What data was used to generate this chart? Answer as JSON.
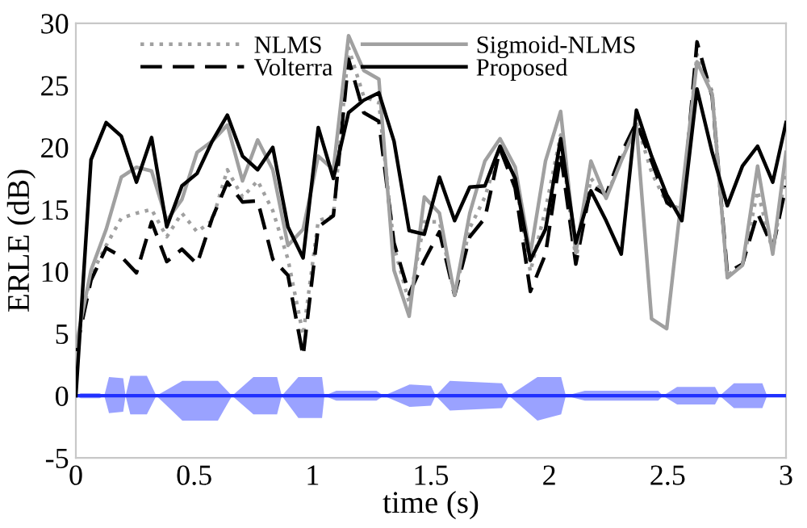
{
  "chart_data": {
    "type": "line",
    "xlabel": "time (s)",
    "ylabel": "ERLE (dB)",
    "x": [
      0,
      0.064,
      0.128,
      0.192,
      0.256,
      0.32,
      0.384,
      0.448,
      0.512,
      0.576,
      0.64,
      0.704,
      0.768,
      0.832,
      0.896,
      0.96,
      1.024,
      1.088,
      1.152,
      1.216,
      1.28,
      1.344,
      1.408,
      1.472,
      1.536,
      1.6,
      1.664,
      1.728,
      1.792,
      1.856,
      1.92,
      1.984,
      2.048,
      2.112,
      2.176,
      2.24,
      2.304,
      2.368,
      2.432,
      2.496,
      2.56,
      2.624,
      2.688,
      2.752,
      2.816,
      2.88,
      2.944,
      3
    ],
    "series": [
      {
        "name": "NLMS",
        "color": "#a0a0a0",
        "line_style": "dotted",
        "values": [
          4.0,
          9.7,
          12.1,
          14.3,
          14.7,
          15.0,
          12.8,
          14.7,
          13.2,
          14.1,
          18.2,
          16.0,
          17.3,
          14.9,
          11.0,
          4.9,
          14.1,
          14.5,
          28.0,
          24.1,
          23.6,
          12.0,
          7.5,
          14.0,
          14.0,
          8.1,
          13.5,
          16.0,
          20.0,
          17.5,
          10.0,
          15.0,
          21.0,
          11.0,
          17.5,
          16.0,
          19.0,
          22.0,
          18.0,
          15.5,
          15.0,
          27.5,
          24.5,
          9.7,
          10.5,
          16.5,
          11.6,
          18.0
        ]
      },
      {
        "name": "Volterra",
        "color": "#000000",
        "line_style": "dashed",
        "values": [
          3.6,
          9.3,
          11.9,
          11.2,
          9.9,
          14.0,
          10.8,
          11.8,
          10.6,
          14.3,
          17.2,
          15.6,
          15.7,
          11.0,
          9.7,
          3.2,
          13.6,
          14.5,
          27.1,
          22.8,
          22.1,
          12.3,
          8.2,
          10.9,
          13.2,
          8.1,
          12.8,
          14.3,
          19.9,
          16.7,
          8.4,
          11.4,
          19.5,
          10.6,
          16.9,
          16.2,
          19.5,
          22.0,
          18.9,
          15.6,
          14.5,
          28.5,
          24.1,
          9.9,
          10.6,
          14.7,
          11.9,
          16.9
        ]
      },
      {
        "name": "Sigmoid-NLMS",
        "color": "#a0a0a0",
        "line_style": "solid",
        "values": [
          4.0,
          10.1,
          13.4,
          17.6,
          18.4,
          18.1,
          14.1,
          15.8,
          19.6,
          20.5,
          21.8,
          17.3,
          20.6,
          18.2,
          12.1,
          13.4,
          19.3,
          18.2,
          29.0,
          26.2,
          25.5,
          10.1,
          6.4,
          16.0,
          14.7,
          8.1,
          14.7,
          18.9,
          20.7,
          18.4,
          11.4,
          18.9,
          22.9,
          11.5,
          18.9,
          15.9,
          18.9,
          21.7,
          6.2,
          5.4,
          16.2,
          26.9,
          24.3,
          9.5,
          10.5,
          18.5,
          11.4,
          19.6
        ]
      },
      {
        "name": "Proposed",
        "color": "#000000",
        "line_style": "solid",
        "values": [
          0,
          19.0,
          22.0,
          20.9,
          17.2,
          20.8,
          13.6,
          16.9,
          17.9,
          20.5,
          22.6,
          19.3,
          18.2,
          20.0,
          13.6,
          11.1,
          21.6,
          17.5,
          22.8,
          23.8,
          24.4,
          20.5,
          13.3,
          13.0,
          17.6,
          14.1,
          16.8,
          16.9,
          20.1,
          17.5,
          10.9,
          13.4,
          20.7,
          12.3,
          16.5,
          14.1,
          11.4,
          23.0,
          19.3,
          16.2,
          14.1,
          24.7,
          19.6,
          15.3,
          18.5,
          20.1,
          17.2,
          22.0
        ]
      },
      {
        "color": "#2030ff",
        "line_style": "solid",
        "x": [
          0,
          0.02,
          0.1,
          0.12,
          0.14,
          0.2,
          0.21,
          0.23,
          0.3,
          0.34,
          0.45,
          0.6,
          0.66,
          0.75,
          0.85,
          0.87,
          0.94,
          1.04,
          1.05,
          1.1,
          1.27,
          1.3,
          1.41,
          1.5,
          1.52,
          1.58,
          1.8,
          1.83,
          1.95,
          2.05,
          2.07,
          2.15,
          2.46,
          2.48,
          2.54,
          2.7,
          2.72,
          2.78,
          2.9,
          2.92,
          3
        ],
        "values": [
          0,
          0,
          0,
          0,
          0,
          0,
          0,
          0,
          0,
          0,
          0,
          0,
          0,
          0,
          0,
          0,
          0,
          0,
          0,
          0,
          0,
          0,
          0,
          0,
          0,
          0,
          0,
          0,
          0,
          0,
          0,
          0,
          0,
          0,
          0,
          0,
          0,
          0,
          0,
          0,
          0
        ],
        "upper": [
          0,
          0.2,
          0.2,
          0,
          1.5,
          1.4,
          0,
          1.6,
          1.6,
          0,
          1.2,
          1.2,
          0,
          1.5,
          1.5,
          0,
          1.5,
          1.5,
          0,
          0.4,
          0.4,
          0,
          0.9,
          0.8,
          0,
          1.2,
          1.0,
          0,
          1.5,
          1.5,
          0,
          0.4,
          0.4,
          0,
          0.7,
          0.7,
          0,
          1.0,
          1.0,
          0,
          0
        ],
        "lower": [
          0,
          -0.2,
          -0.2,
          0,
          -1.4,
          -1.3,
          0,
          -1.5,
          -1.5,
          0,
          -2.0,
          -2.0,
          0,
          -1.5,
          -1.5,
          0,
          -1.8,
          -1.8,
          0,
          -0.4,
          -0.4,
          0,
          -0.9,
          -0.8,
          0,
          -1.2,
          -1.0,
          0,
          -2.0,
          -1.5,
          0,
          -0.4,
          -0.4,
          0,
          -0.7,
          -0.7,
          0,
          -1.0,
          -1.0,
          0,
          0
        ]
      }
    ],
    "xlim": [
      0,
      3
    ],
    "xticks": [
      0,
      0.5,
      1,
      1.5,
      2,
      2.5,
      3
    ],
    "ylim": [
      -5,
      30
    ],
    "yticks": [
      -5,
      0,
      5,
      10,
      15,
      20,
      25,
      30
    ],
    "legend": "top",
    "grid": false
  }
}
